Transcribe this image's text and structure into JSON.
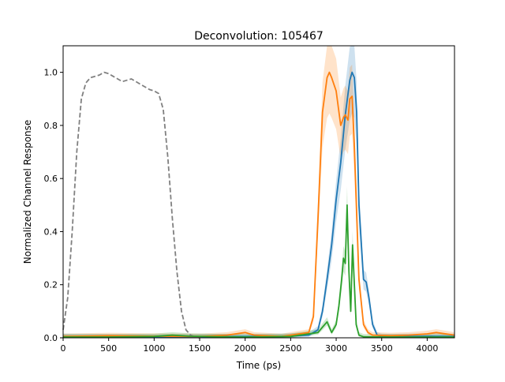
{
  "chart_data": {
    "type": "line",
    "title": "Deconvolution: 105467",
    "xlabel": "Time (ps)",
    "ylabel": "Normalized Channel Response",
    "xlim": [
      0,
      4300
    ],
    "ylim": [
      0,
      1.1
    ],
    "xticks": [
      0,
      500,
      1000,
      1500,
      2000,
      2500,
      3000,
      3500,
      4000
    ],
    "yticks": [
      0.0,
      0.2,
      0.4,
      0.6,
      0.8,
      1.0
    ],
    "xtick_labels": [
      "0",
      "500",
      "1000",
      "1500",
      "2000",
      "2500",
      "3000",
      "3500",
      "4000"
    ],
    "ytick_labels": [
      "0.0",
      "0.2",
      "0.4",
      "0.6",
      "0.8",
      "1.0"
    ],
    "grid": false,
    "legend": "none",
    "series": [
      {
        "style": "dashed",
        "color": "#808080",
        "x": [
          0,
          50,
          100,
          150,
          200,
          250,
          300,
          350,
          400,
          450,
          500,
          550,
          600,
          650,
          700,
          750,
          800,
          850,
          900,
          950,
          1000,
          1050,
          1100,
          1150,
          1200,
          1250,
          1300,
          1350,
          1400,
          1450,
          1500
        ],
        "y": [
          0.03,
          0.15,
          0.4,
          0.7,
          0.9,
          0.96,
          0.98,
          0.985,
          0.99,
          1.0,
          0.995,
          0.985,
          0.975,
          0.965,
          0.97,
          0.975,
          0.965,
          0.955,
          0.945,
          0.935,
          0.93,
          0.92,
          0.86,
          0.68,
          0.45,
          0.25,
          0.1,
          0.03,
          0.01,
          0.003,
          0.0
        ]
      },
      {
        "color": "#1f77b4",
        "x": [
          0,
          500,
          1000,
          1500,
          2000,
          2400,
          2700,
          2800,
          2850,
          2900,
          2950,
          3000,
          3050,
          3100,
          3150,
          3175,
          3200,
          3225,
          3250,
          3300,
          3330,
          3360,
          3400,
          3450,
          3500,
          3600,
          3800,
          4000,
          4300
        ],
        "y": [
          0.005,
          0.004,
          0.003,
          0.004,
          0.005,
          0.005,
          0.01,
          0.03,
          0.1,
          0.22,
          0.35,
          0.52,
          0.66,
          0.84,
          0.97,
          1.0,
          0.98,
          0.85,
          0.5,
          0.22,
          0.21,
          0.15,
          0.05,
          0.01,
          0.005,
          0.004,
          0.005,
          0.006,
          0.005
        ]
      },
      {
        "color": "#ff7f0e",
        "x": [
          0,
          500,
          1000,
          1500,
          1800,
          2000,
          2100,
          2400,
          2700,
          2750,
          2800,
          2850,
          2900,
          2925,
          2950,
          3000,
          3050,
          3080,
          3100,
          3130,
          3150,
          3175,
          3200,
          3250,
          3300,
          3350,
          3400,
          3600,
          3800,
          4000,
          4100,
          4300
        ],
        "y": [
          0.005,
          0.008,
          0.006,
          0.005,
          0.01,
          0.02,
          0.01,
          0.005,
          0.02,
          0.08,
          0.45,
          0.85,
          0.98,
          1.0,
          0.98,
          0.93,
          0.8,
          0.83,
          0.84,
          0.82,
          0.9,
          0.91,
          0.72,
          0.22,
          0.05,
          0.02,
          0.01,
          0.008,
          0.01,
          0.015,
          0.02,
          0.01
        ]
      },
      {
        "color": "#2ca02c",
        "x": [
          0,
          500,
          1000,
          1200,
          1400,
          1700,
          2000,
          2500,
          2800,
          2850,
          2900,
          2950,
          3000,
          3030,
          3060,
          3080,
          3100,
          3120,
          3140,
          3160,
          3180,
          3200,
          3220,
          3250,
          3300,
          3500,
          4000,
          4300
        ],
        "y": [
          0.003,
          0.003,
          0.005,
          0.01,
          0.006,
          0.004,
          0.003,
          0.005,
          0.02,
          0.04,
          0.06,
          0.02,
          0.05,
          0.12,
          0.22,
          0.3,
          0.28,
          0.5,
          0.25,
          0.1,
          0.35,
          0.2,
          0.05,
          0.01,
          0.004,
          0.003,
          0.003,
          0.003
        ]
      }
    ]
  }
}
